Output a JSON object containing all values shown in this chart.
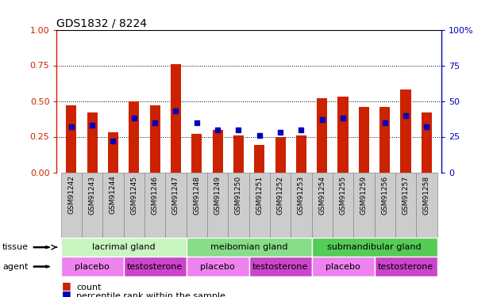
{
  "title": "GDS1832 / 8224",
  "samples": [
    "GSM91242",
    "GSM91243",
    "GSM91244",
    "GSM91245",
    "GSM91246",
    "GSM91247",
    "GSM91248",
    "GSM91249",
    "GSM91250",
    "GSM91251",
    "GSM91252",
    "GSM91253",
    "GSM91254",
    "GSM91255",
    "GSM91259",
    "GSM91256",
    "GSM91257",
    "GSM91258"
  ],
  "red_values": [
    0.47,
    0.42,
    0.28,
    0.5,
    0.47,
    0.76,
    0.27,
    0.3,
    0.26,
    0.19,
    0.25,
    0.26,
    0.52,
    0.53,
    0.46,
    0.46,
    0.58,
    0.42
  ],
  "blue_values": [
    0.32,
    0.33,
    0.22,
    0.38,
    0.35,
    0.43,
    0.35,
    0.3,
    0.3,
    0.26,
    0.28,
    0.3,
    0.37,
    0.38,
    0.0,
    0.35,
    0.4,
    0.32
  ],
  "tissue_groups": [
    {
      "label": "lacrimal gland",
      "start": 0,
      "end": 6,
      "color": "#c8f5c0"
    },
    {
      "label": "meibomian gland",
      "start": 6,
      "end": 12,
      "color": "#88dd88"
    },
    {
      "label": "submandibular gland",
      "start": 12,
      "end": 18,
      "color": "#55cc55"
    }
  ],
  "agent_groups": [
    {
      "label": "placebo",
      "start": 0,
      "end": 3,
      "color": "#ee82ee"
    },
    {
      "label": "testosterone",
      "start": 3,
      "end": 6,
      "color": "#cc44cc"
    },
    {
      "label": "placebo",
      "start": 6,
      "end": 9,
      "color": "#ee82ee"
    },
    {
      "label": "testosterone",
      "start": 9,
      "end": 12,
      "color": "#cc44cc"
    },
    {
      "label": "placebo",
      "start": 12,
      "end": 15,
      "color": "#ee82ee"
    },
    {
      "label": "testosterone",
      "start": 15,
      "end": 18,
      "color": "#cc44cc"
    }
  ],
  "red_color": "#cc2200",
  "blue_color": "#0000bb",
  "bar_width": 0.5,
  "ylim_left": [
    0,
    1
  ],
  "ylim_right": [
    0,
    100
  ],
  "yticks_left": [
    0,
    0.25,
    0.5,
    0.75,
    1.0
  ],
  "yticks_right": [
    0,
    25,
    50,
    75,
    100
  ],
  "xtick_bg": "#cccccc",
  "xtick_border": "#888888"
}
